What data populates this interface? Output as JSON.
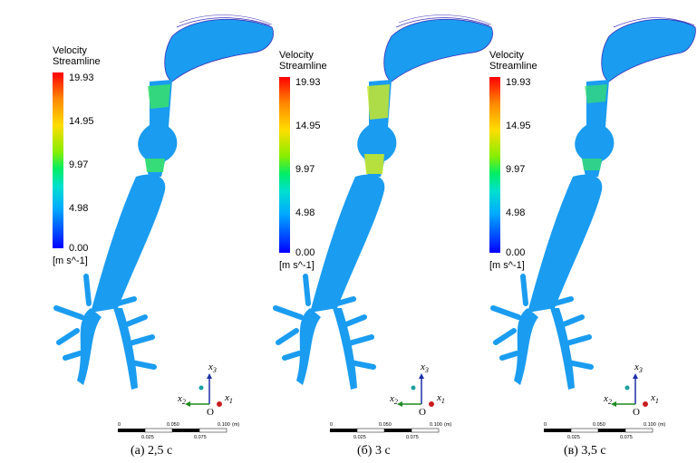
{
  "legend": {
    "title_line1": "Velocity",
    "title_line2": "Streamline",
    "ticks": [
      "19.93",
      "14.95",
      "9.97",
      "4.98",
      "0.00"
    ],
    "unit": "[m s^-1]"
  },
  "axes": {
    "x1": "x",
    "x1_sub": "1",
    "x2": "x",
    "x2_sub": "2",
    "x3": "x",
    "x3_sub": "3",
    "origin": "O"
  },
  "scale": {
    "top": [
      "0",
      "0.050",
      "0.100",
      "(m)"
    ],
    "bottom": [
      "0.025",
      "0.075"
    ]
  },
  "panels": [
    {
      "caption": "(а) 2,5 с"
    },
    {
      "caption": "(б) 3 с"
    },
    {
      "caption": "(в) 3,5 с"
    }
  ],
  "colors": {
    "airway": "#1a9cf0",
    "airway_dark": "#0b66c8",
    "hot_green": "#38e36a",
    "hot_yellow": "#c8e82a",
    "streamline": "#3a2fb8",
    "x1_axis": "#c81e1e",
    "x2_axis": "#1f8a1f",
    "x3_axis": "#1d2fa8"
  }
}
